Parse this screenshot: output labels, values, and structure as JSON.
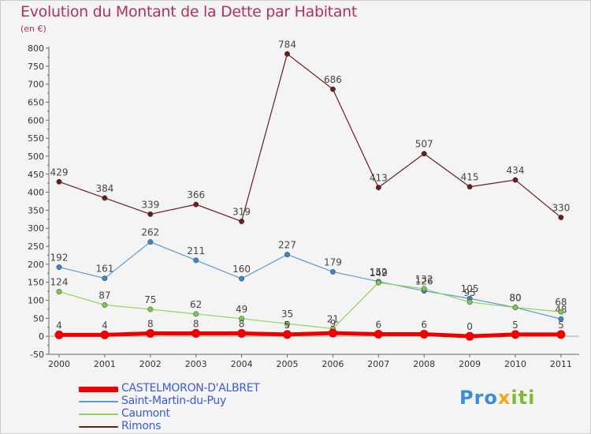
{
  "title": "Evolution du Montant de la Dette par Habitant",
  "subtitle": "(en €)",
  "logo": {
    "p1": "Pro",
    "p2": "x",
    "p3": "iti"
  },
  "chart_data": {
    "type": "line",
    "title": "Evolution du Montant de la Dette par Habitant",
    "subtitle": "(en €)",
    "x": [
      "2000",
      "2001",
      "2002",
      "2003",
      "2004",
      "2005",
      "2006",
      "2007",
      "2008",
      "2009",
      "2010",
      "2011"
    ],
    "ylim": [
      -50,
      800
    ],
    "yticks": [
      -50,
      0,
      50,
      100,
      150,
      200,
      250,
      300,
      350,
      400,
      450,
      500,
      550,
      600,
      650,
      700,
      750,
      800
    ],
    "grid": false,
    "legend_position": "bottom-left",
    "series": [
      {
        "name": "Rimons",
        "color": "#6b1d1d",
        "marker": "#6b1d1d",
        "width": 1.2,
        "values": [
          429,
          384,
          339,
          366,
          319,
          784,
          686,
          413,
          507,
          415,
          434,
          330
        ]
      },
      {
        "name": "Saint-Martin-du-Puy",
        "color": "#5b9bd5",
        "marker": "#3f86c8",
        "width": 1.2,
        "values": [
          192,
          161,
          262,
          211,
          160,
          227,
          179,
          152,
          126,
          105,
          80,
          48
        ]
      },
      {
        "name": "Caumont",
        "color": "#8fd45a",
        "marker": "#7cc84a",
        "width": 1.2,
        "values": [
          124,
          87,
          75,
          62,
          49,
          35,
          21,
          149,
          132,
          95,
          80,
          68
        ]
      },
      {
        "name": "CASTELMORON-D'ALBRET",
        "color": "#ee0000",
        "marker": "#ee0000",
        "width": 5,
        "values": [
          4,
          4,
          8,
          8,
          8,
          5,
          9,
          6,
          6,
          0,
          5,
          5
        ]
      }
    ],
    "legend": [
      {
        "name": "CASTELMORON-D'ALBRET",
        "color": "#ee0000",
        "text_color": "#3b5bd6"
      },
      {
        "name": "Saint-Martin-du-Puy",
        "color": "#5b9bd5",
        "text_color": "#3b5bd6"
      },
      {
        "name": "Caumont",
        "color": "#8fd45a",
        "text_color": "#3b5bd6"
      },
      {
        "name": "Rimons",
        "color": "#6b1d1d",
        "text_color": "#3b5bd6"
      }
    ]
  }
}
